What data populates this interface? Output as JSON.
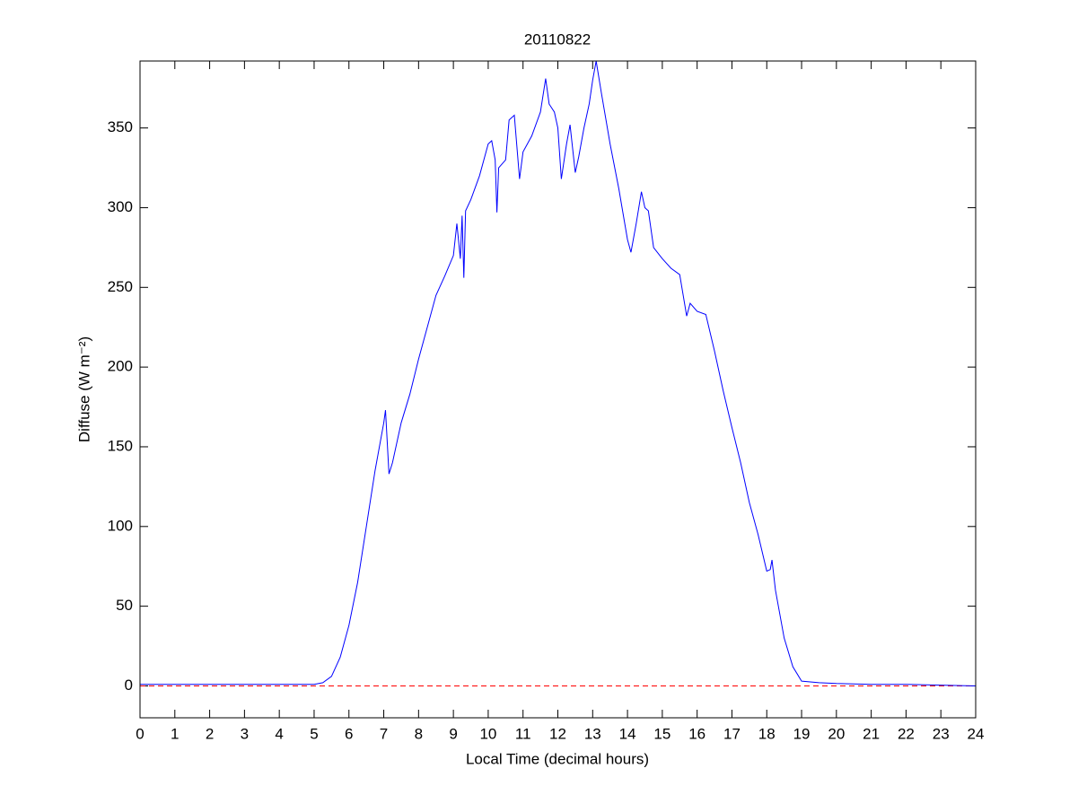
{
  "chart_data": {
    "type": "line",
    "title": "20110822",
    "xlabel": "Local Time (decimal hours)",
    "ylabel": "Diffuse (W m⁻²)",
    "x": [
      0,
      1,
      2,
      3,
      4,
      5,
      5.25,
      5.5,
      5.75,
      6,
      6.25,
      6.5,
      6.75,
      7,
      7.05,
      7.15,
      7.25,
      7.5,
      7.75,
      8,
      8.25,
      8.5,
      8.75,
      9,
      9.1,
      9.2,
      9.25,
      9.3,
      9.35,
      9.5,
      9.75,
      10,
      10.1,
      10.2,
      10.25,
      10.3,
      10.5,
      10.6,
      10.75,
      10.9,
      11,
      11.25,
      11.5,
      11.65,
      11.75,
      11.9,
      12,
      12.1,
      12.25,
      12.35,
      12.5,
      12.6,
      12.75,
      12.9,
      13,
      13.1,
      13.25,
      13.5,
      13.75,
      14,
      14.1,
      14.25,
      14.4,
      14.5,
      14.6,
      14.75,
      15,
      15.25,
      15.5,
      15.6,
      15.7,
      15.8,
      16,
      16.25,
      16.5,
      16.75,
      17,
      17.25,
      17.5,
      17.75,
      18,
      18.1,
      18.15,
      18.25,
      18.5,
      18.75,
      19,
      19.5,
      20,
      21,
      22,
      23,
      24
    ],
    "series": [
      {
        "name": "Diffuse",
        "color": "#0000ff",
        "values": [
          1,
          1,
          1,
          1,
          1,
          1,
          2,
          6,
          18,
          38,
          65,
          100,
          135,
          165,
          173,
          133,
          140,
          165,
          183,
          205,
          225,
          245,
          257,
          270,
          290,
          268,
          295,
          256,
          298,
          305,
          320,
          340,
          342,
          330,
          297,
          325,
          330,
          355,
          358,
          318,
          335,
          345,
          360,
          381,
          365,
          360,
          350,
          318,
          340,
          352,
          322,
          332,
          350,
          365,
          380,
          392,
          372,
          340,
          312,
          280,
          272,
          290,
          310,
          300,
          298,
          275,
          268,
          262,
          258,
          245,
          232,
          240,
          235,
          233,
          210,
          185,
          162,
          140,
          115,
          95,
          72,
          73,
          79,
          60,
          30,
          12,
          3,
          2,
          1.5,
          1,
          1,
          0.5,
          0
        ]
      }
    ],
    "hline": {
      "value": 0,
      "color": "#ff0000"
    },
    "xlim": [
      0,
      24
    ],
    "ylim": [
      -20,
      392
    ],
    "xticks": [
      0,
      1,
      2,
      3,
      4,
      5,
      6,
      7,
      8,
      9,
      10,
      11,
      12,
      13,
      14,
      15,
      16,
      17,
      18,
      19,
      20,
      21,
      22,
      23,
      24
    ],
    "yticks": [
      0,
      50,
      100,
      150,
      200,
      250,
      300,
      350
    ]
  }
}
